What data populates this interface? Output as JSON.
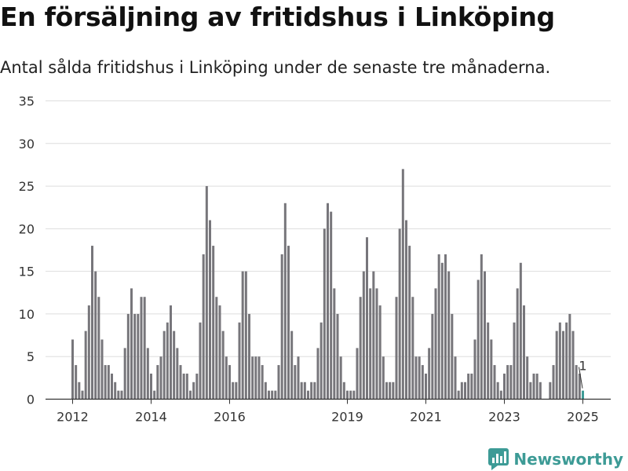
{
  "title": "En försäljning av fritidshus i Linköping",
  "subtitle": "Antal sålda fritidshus i Linköping under de senaste tre månaderna.",
  "brand": "Newsworthy",
  "colors": {
    "bar": "#77767b",
    "highlight": "#3d9b96",
    "grid": "#dddddd",
    "brand": "#3d9b96"
  },
  "chart_data": {
    "type": "bar",
    "title": "En försäljning av fritidshus i Linköping",
    "subtitle": "Antal sålda fritidshus i Linköping under de senaste tre månaderna.",
    "xlabel": "",
    "ylabel": "",
    "ylim": [
      0,
      35
    ],
    "yticks": [
      0,
      5,
      10,
      15,
      20,
      25,
      30,
      35
    ],
    "grid": true,
    "x_start": "2012-01",
    "xticks": [
      {
        "label": "2012",
        "month": "2012-01"
      },
      {
        "label": "2014",
        "month": "2014-01"
      },
      {
        "label": "2016",
        "month": "2016-01"
      },
      {
        "label": "2019",
        "month": "2019-01"
      },
      {
        "label": "2021",
        "month": "2021-01"
      },
      {
        "label": "2023",
        "month": "2023-01"
      },
      {
        "label": "2025",
        "month": "2025-01"
      }
    ],
    "values": [
      7,
      4,
      2,
      1,
      8,
      11,
      18,
      15,
      12,
      7,
      4,
      4,
      3,
      2,
      1,
      1,
      6,
      10,
      13,
      10,
      10,
      12,
      12,
      6,
      3,
      1,
      4,
      5,
      8,
      9,
      11,
      8,
      6,
      4,
      3,
      3,
      1,
      2,
      3,
      9,
      17,
      25,
      21,
      18,
      12,
      11,
      8,
      5,
      4,
      2,
      2,
      9,
      15,
      15,
      10,
      5,
      5,
      5,
      4,
      2,
      1,
      1,
      1,
      4,
      17,
      23,
      18,
      8,
      4,
      5,
      2,
      2,
      1,
      2,
      2,
      6,
      9,
      20,
      23,
      22,
      13,
      10,
      5,
      2,
      1,
      1,
      1,
      6,
      12,
      15,
      19,
      13,
      15,
      13,
      11,
      5,
      2,
      2,
      2,
      12,
      20,
      27,
      21,
      18,
      12,
      5,
      5,
      4,
      3,
      6,
      10,
      13,
      17,
      16,
      17,
      15,
      10,
      5,
      1,
      2,
      2,
      3,
      3,
      7,
      14,
      17,
      15,
      9,
      7,
      4,
      2,
      1,
      3,
      4,
      4,
      9,
      13,
      16,
      11,
      5,
      2,
      3,
      3,
      2,
      0,
      0,
      2,
      4,
      8,
      9,
      8,
      9,
      10,
      8,
      4,
      3,
      1
    ],
    "annotation": {
      "label": "1",
      "value": 1,
      "index": "last"
    }
  }
}
